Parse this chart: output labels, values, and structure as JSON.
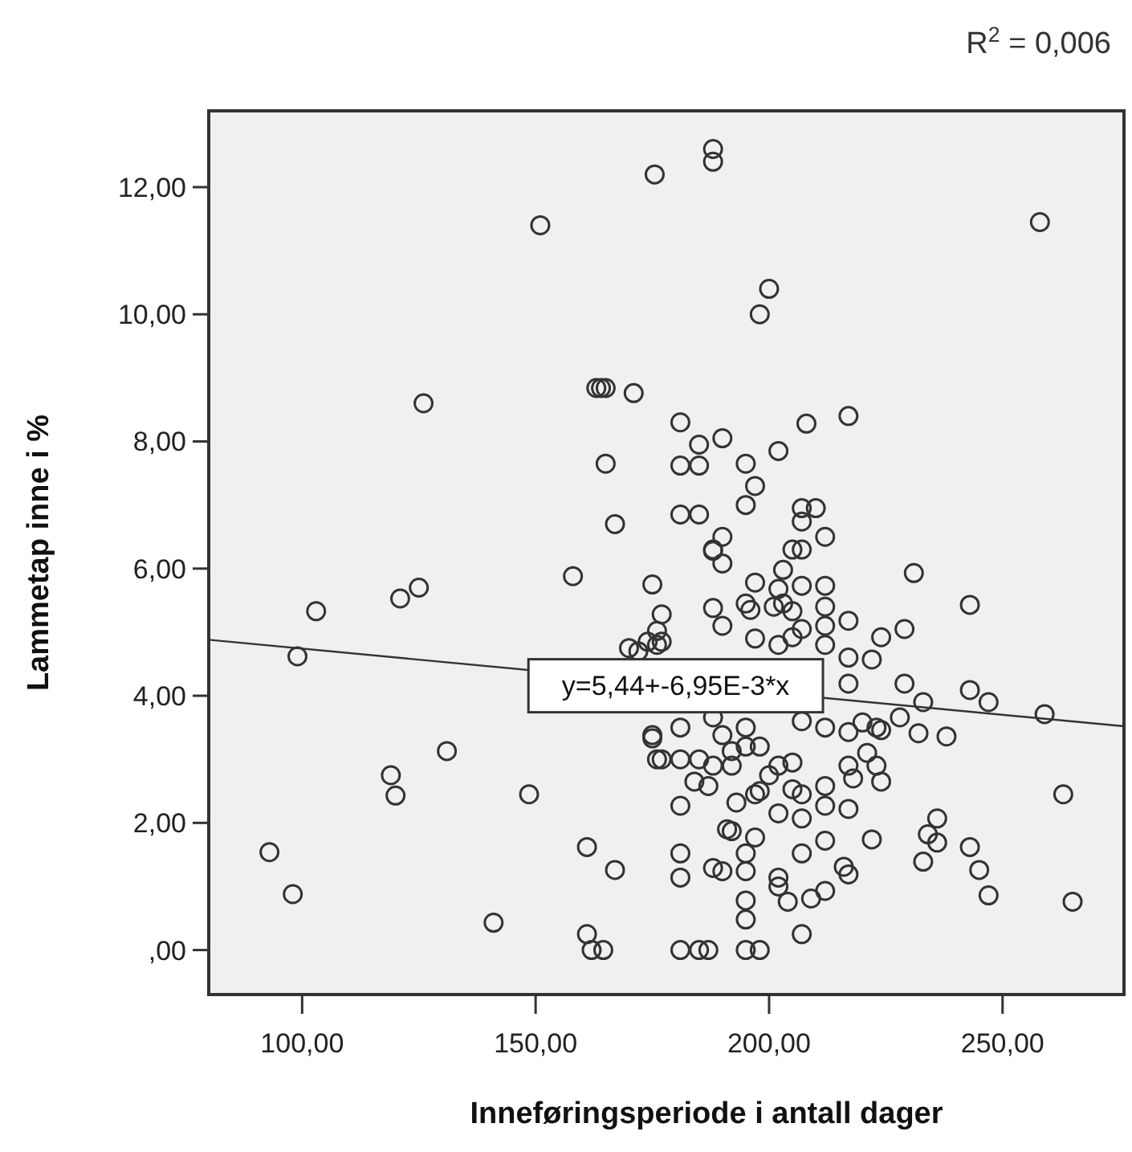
{
  "chart_data": {
    "type": "scatter",
    "xlabel": "Inneføringsperiode i antall dager",
    "ylabel": "Lammetap inne i %",
    "xlim": [
      80,
      276
    ],
    "xticks": [
      {
        "value": 100,
        "label": "100,00"
      },
      {
        "value": 150,
        "label": "150,00"
      },
      {
        "value": 200,
        "label": "200,00"
      },
      {
        "value": 250,
        "label": "250,00"
      }
    ],
    "ylim": [
      -0.7,
      13.2
    ],
    "yticks": [
      {
        "value": 0,
        "label": ",00"
      },
      {
        "value": 2,
        "label": "2,00"
      },
      {
        "value": 4,
        "label": "4,00"
      },
      {
        "value": 6,
        "label": "6,00"
      },
      {
        "value": 8,
        "label": "8,00"
      },
      {
        "value": 10,
        "label": "10,00"
      },
      {
        "value": 12,
        "label": "12,00"
      }
    ],
    "grid": false,
    "annotations": [
      "R$^{2}$ = 0,006",
      {
        "text": "y=5,44+-6,95E-3*x",
        "x": 180,
        "y": 4.17
      }
    ],
    "series": [
      {
        "marker": "circle",
        "color": "#333333",
        "x": [
          175.5,
          151,
          126,
          163,
          164,
          165,
          171,
          165,
          167,
          188,
          188,
          258,
          200,
          198,
          181,
          208,
          217,
          185,
          190,
          181,
          185,
          195,
          202,
          197,
          195,
          181,
          185,
          207,
          210,
          207,
          212,
          190,
          188,
          205,
          207,
          158,
          175,
          125,
          121,
          103,
          99,
          131,
          119,
          120,
          148.6,
          93,
          98,
          141,
          161,
          167,
          161,
          162,
          164.5,
          170,
          172,
          174,
          176,
          175,
          176,
          188,
          190,
          231,
          243,
          197,
          203,
          207,
          212,
          202,
          188,
          190,
          195,
          196,
          201,
          203,
          177,
          176,
          177,
          205,
          207,
          212,
          212,
          212,
          217,
          197,
          202,
          205,
          224,
          229,
          217,
          222,
          217,
          229,
          233,
          243,
          247,
          259,
          207,
          212,
          217,
          220,
          223,
          224,
          228,
          232,
          238,
          181,
          175,
          177,
          181,
          185,
          188,
          190,
          195,
          195,
          192,
          198,
          188,
          184,
          187,
          192,
          205,
          202,
          200,
          197,
          217,
          218,
          221,
          223,
          224,
          205,
          207,
          212,
          212,
          217,
          181,
          193,
          198,
          202,
          207,
          191,
          192,
          197,
          195,
          181,
          181,
          188,
          190,
          195,
          202,
          202,
          207,
          212,
          216,
          217,
          204,
          209,
          212,
          195,
          195,
          207,
          222,
          234,
          236,
          236,
          233,
          243,
          245,
          247,
          263,
          265,
          181,
          185,
          187,
          195,
          198
        ],
        "values": [
          12.2,
          11.4,
          8.6,
          8.84,
          8.84,
          8.84,
          8.76,
          7.65,
          6.7,
          12.6,
          12.4,
          11.45,
          10.4,
          10.0,
          8.3,
          8.28,
          8.4,
          7.95,
          8.05,
          7.62,
          7.62,
          7.65,
          7.85,
          7.3,
          7.0,
          6.85,
          6.85,
          6.95,
          6.95,
          6.74,
          6.5,
          6.5,
          6.3,
          6.3,
          6.3,
          5.88,
          5.75,
          5.7,
          5.53,
          5.33,
          4.62,
          3.13,
          2.75,
          2.43,
          2.45,
          1.54,
          0.88,
          0.43,
          1.62,
          1.26,
          0.25,
          0,
          0,
          4.75,
          4.7,
          4.85,
          4.8,
          3.33,
          3.0,
          6.28,
          6.08,
          5.93,
          5.43,
          5.78,
          5.98,
          5.73,
          5.73,
          5.68,
          5.38,
          5.1,
          5.45,
          5.35,
          5.4,
          5.45,
          5.28,
          5.02,
          4.85,
          5.33,
          5.05,
          5.4,
          5.1,
          4.8,
          5.18,
          4.9,
          4.8,
          4.92,
          4.92,
          5.05,
          4.6,
          4.57,
          4.19,
          4.19,
          3.9,
          4.09,
          3.9,
          3.71,
          3.6,
          3.5,
          3.43,
          3.58,
          3.5,
          3.46,
          3.66,
          3.41,
          3.36,
          3.5,
          3.38,
          3.0,
          3.0,
          3.0,
          3.66,
          3.38,
          3.5,
          3.2,
          3.13,
          3.2,
          2.9,
          2.65,
          2.58,
          2.9,
          2.95,
          2.9,
          2.75,
          2.45,
          2.9,
          2.7,
          3.1,
          2.9,
          2.65,
          2.53,
          2.45,
          2.58,
          2.27,
          2.22,
          2.27,
          2.32,
          2.5,
          2.15,
          2.07,
          1.9,
          1.87,
          1.77,
          1.52,
          1.52,
          1.14,
          1.29,
          1.24,
          1.24,
          1.14,
          1.0,
          1.52,
          1.72,
          1.31,
          1.19,
          0.76,
          0.81,
          0.93,
          0.78,
          0.48,
          0.25,
          1.74,
          1.82,
          2.07,
          1.69,
          1.39,
          1.62,
          1.26,
          0.86,
          2.45,
          0.76,
          0,
          0,
          0,
          0,
          0
        ]
      },
      {
        "type": "line",
        "color": "#333333",
        "x": [
          80,
          276
        ],
        "values": [
          4.88,
          3.52
        ]
      }
    ]
  }
}
